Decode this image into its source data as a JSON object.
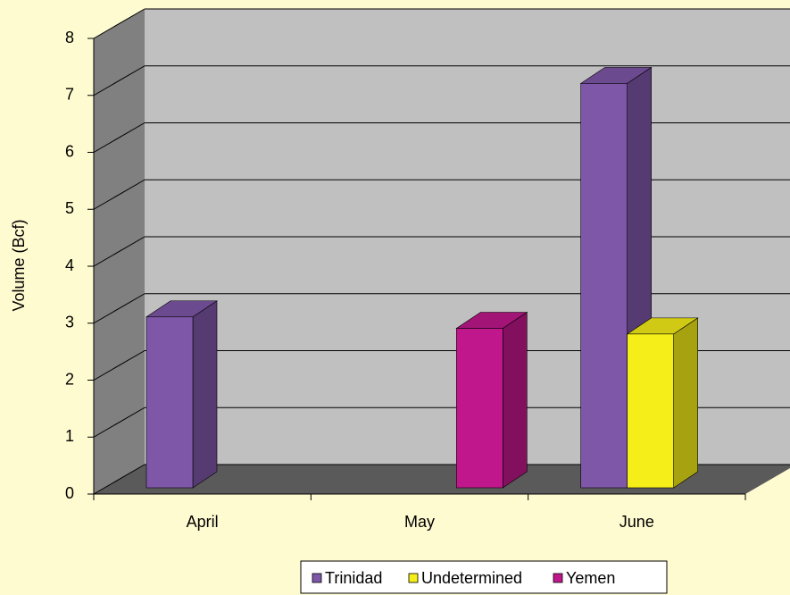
{
  "chart_data": {
    "type": "bar3d",
    "y_label": "Volume (Bcf)",
    "categories": [
      "April",
      "May",
      "June"
    ],
    "series": [
      {
        "name": "Trinidad",
        "color": "#7F57A8",
        "values": [
          3.0,
          null,
          7.1
        ]
      },
      {
        "name": "Undetermined",
        "color": "#F5EE18",
        "values": [
          null,
          null,
          2.7
        ]
      },
      {
        "name": "Yemen",
        "color": "#C0188C",
        "values": [
          null,
          2.8,
          null
        ]
      }
    ],
    "ylim": [
      0,
      8
    ],
    "yticks": [
      0,
      1,
      2,
      3,
      4,
      5,
      6,
      7,
      8
    ],
    "grid": true,
    "legend": "bottom"
  }
}
